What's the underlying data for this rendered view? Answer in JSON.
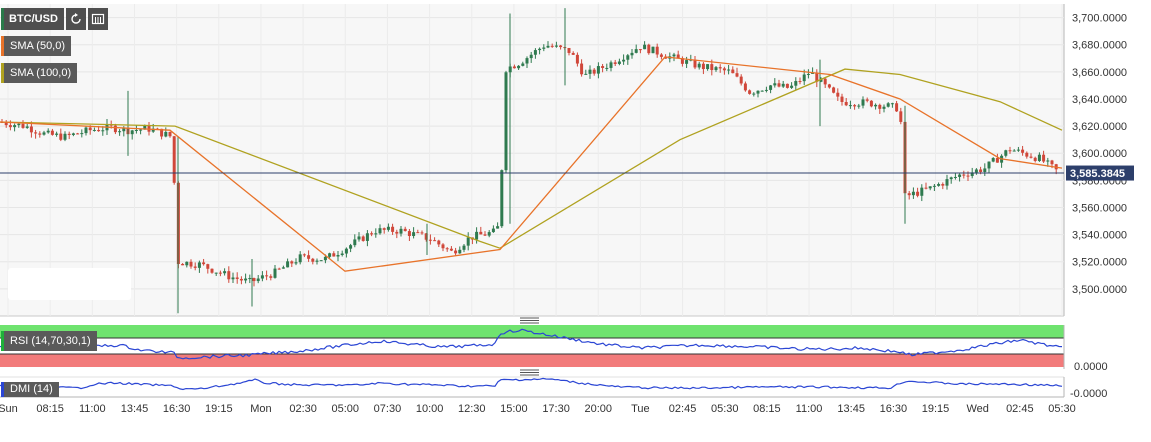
{
  "chart_data": {
    "type": "candlestick",
    "symbol": "BTC/USD",
    "indicators": {
      "sma50_label": "SMA (50,0)",
      "sma100_label": "SMA (100,0)",
      "rsi_label": "RSI (14,70,30,1)",
      "dmi_label": "DMI (14)"
    },
    "price_axis": {
      "ylim": [
        3480,
        3710
      ],
      "ticks": [
        "3,700.0000",
        "3,680.0000",
        "3,660.0000",
        "3,640.0000",
        "3,620.0000",
        "3,600.0000",
        "3,580.0000",
        "3,560.0000",
        "3,540.0000",
        "3,520.0000",
        "3,500.0000"
      ],
      "tick_values": [
        3700,
        3680,
        3660,
        3640,
        3620,
        3600,
        3580,
        3560,
        3540,
        3520,
        3500
      ]
    },
    "current_price": 3585.3845,
    "current_price_label": "3,585.3845",
    "rsi_axis_label": "0.0000",
    "dmi_axis_label": "-0.0000",
    "x_labels": [
      "Sun",
      "08:15",
      "11:00",
      "13:45",
      "16:30",
      "19:15",
      "Mon",
      "02:30",
      "05:00",
      "07:30",
      "10:00",
      "12:30",
      "15:00",
      "17:30",
      "20:00",
      "Tue",
      "02:45",
      "05:30",
      "08:15",
      "11:00",
      "13:45",
      "16:30",
      "19:15",
      "Wed",
      "02:45",
      "05:30"
    ],
    "close_anchors": [
      [
        0,
        3623
      ],
      [
        25,
        3620
      ],
      [
        45,
        3614
      ],
      [
        65,
        3612
      ],
      [
        90,
        3617
      ],
      [
        110,
        3619
      ],
      [
        128,
        3617
      ],
      [
        150,
        3618
      ],
      [
        172,
        3612
      ],
      [
        178,
        3520
      ],
      [
        200,
        3518
      ],
      [
        230,
        3509
      ],
      [
        250,
        3505
      ],
      [
        275,
        3512
      ],
      [
        300,
        3523
      ],
      [
        325,
        3522
      ],
      [
        350,
        3532
      ],
      [
        375,
        3543
      ],
      [
        400,
        3543
      ],
      [
        430,
        3537
      ],
      [
        452,
        3527
      ],
      [
        470,
        3538
      ],
      [
        495,
        3542
      ],
      [
        500,
        3548
      ],
      [
        505,
        3662
      ],
      [
        520,
        3667
      ],
      [
        545,
        3680
      ],
      [
        570,
        3675
      ],
      [
        585,
        3657
      ],
      [
        610,
        3666
      ],
      [
        640,
        3679
      ],
      [
        670,
        3671
      ],
      [
        700,
        3664
      ],
      [
        730,
        3660
      ],
      [
        750,
        3645
      ],
      [
        770,
        3650
      ],
      [
        790,
        3648
      ],
      [
        810,
        3660
      ],
      [
        828,
        3647
      ],
      [
        840,
        3638
      ],
      [
        870,
        3637
      ],
      [
        900,
        3633
      ],
      [
        905,
        3568
      ],
      [
        930,
        3574
      ],
      [
        960,
        3584
      ],
      [
        985,
        3589
      ],
      [
        1010,
        3603
      ],
      [
        1040,
        3596
      ],
      [
        1060,
        3585
      ]
    ],
    "sma50": [
      [
        0,
        3623
      ],
      [
        170,
        3617
      ],
      [
        345,
        3513
      ],
      [
        500,
        3529
      ],
      [
        665,
        3671
      ],
      [
        830,
        3658
      ],
      [
        900,
        3640
      ],
      [
        1000,
        3596
      ],
      [
        1062,
        3589
      ]
    ],
    "sma100": [
      [
        0,
        3623
      ],
      [
        175,
        3620
      ],
      [
        480,
        3535
      ],
      [
        500,
        3530
      ],
      [
        680,
        3610
      ],
      [
        845,
        3662
      ],
      [
        900,
        3658
      ],
      [
        1000,
        3638
      ],
      [
        1062,
        3617
      ]
    ],
    "rsi_line": [
      [
        0,
        346
      ],
      [
        60,
        348
      ],
      [
        120,
        345
      ],
      [
        140,
        350
      ],
      [
        175,
        353
      ],
      [
        178,
        358
      ],
      [
        250,
        355
      ],
      [
        300,
        351
      ],
      [
        380,
        341
      ],
      [
        440,
        347
      ],
      [
        470,
        346
      ],
      [
        495,
        344
      ],
      [
        500,
        333
      ],
      [
        520,
        330
      ],
      [
        560,
        337
      ],
      [
        600,
        344
      ],
      [
        640,
        348
      ],
      [
        700,
        345
      ],
      [
        760,
        347
      ],
      [
        800,
        349
      ],
      [
        830,
        349
      ],
      [
        860,
        348
      ],
      [
        900,
        352
      ],
      [
        910,
        355
      ],
      [
        960,
        350
      ],
      [
        1000,
        343
      ],
      [
        1020,
        340
      ],
      [
        1062,
        348
      ]
    ],
    "dmi_line": [
      [
        0,
        386
      ],
      [
        80,
        388
      ],
      [
        95,
        384
      ],
      [
        115,
        383
      ],
      [
        175,
        386
      ],
      [
        180,
        389
      ],
      [
        200,
        389
      ],
      [
        240,
        383
      ],
      [
        255,
        380
      ],
      [
        265,
        383
      ],
      [
        300,
        385
      ],
      [
        360,
        385
      ],
      [
        380,
        383
      ],
      [
        400,
        384
      ],
      [
        440,
        385
      ],
      [
        460,
        386
      ],
      [
        495,
        386
      ],
      [
        500,
        380
      ],
      [
        550,
        379
      ],
      [
        580,
        383
      ],
      [
        620,
        387
      ],
      [
        660,
        388
      ],
      [
        700,
        388
      ],
      [
        760,
        387
      ],
      [
        820,
        387
      ],
      [
        890,
        388
      ],
      [
        905,
        381
      ],
      [
        960,
        384
      ],
      [
        1000,
        384
      ],
      [
        1040,
        385
      ],
      [
        1062,
        386
      ]
    ]
  }
}
